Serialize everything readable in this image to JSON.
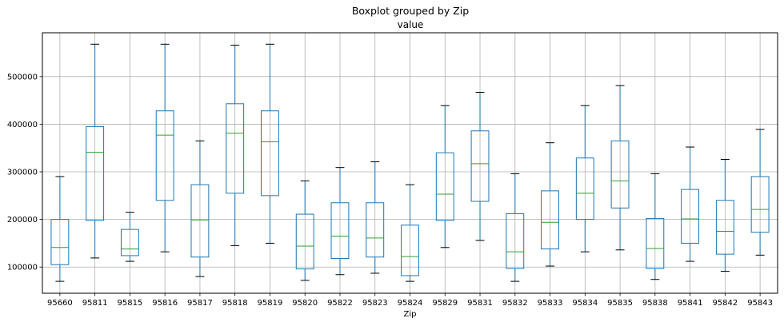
{
  "chart_data": {
    "type": "boxplot",
    "title": "Boxplot grouped by Zip",
    "subtitle": "value",
    "xlabel": "Zip",
    "ylabel": "",
    "ylim": [
      45000,
      592000
    ],
    "yticks": [
      100000,
      200000,
      300000,
      400000,
      500000
    ],
    "ytick_labels": [
      "100000",
      "200000",
      "300000",
      "400000",
      "500000"
    ],
    "grid": true,
    "colors": {
      "box": "#1f77b4",
      "median": "#2ca02c",
      "whisker_cap": "#000000",
      "grid": "#b0b0b0"
    },
    "categories": [
      "95660",
      "95811",
      "95815",
      "95816",
      "95817",
      "95818",
      "95819",
      "95820",
      "95822",
      "95823",
      "95824",
      "95829",
      "95831",
      "95832",
      "95833",
      "95834",
      "95835",
      "95838",
      "95841",
      "95842",
      "95843"
    ],
    "boxes": [
      {
        "whislo": 70000,
        "q1": 105000,
        "med": 141000,
        "q3": 200000,
        "whishi": 290000
      },
      {
        "whislo": 119000,
        "q1": 198000,
        "med": 341000,
        "q3": 395000,
        "whishi": 568000
      },
      {
        "whislo": 112000,
        "q1": 124000,
        "med": 138000,
        "q3": 179000,
        "whishi": 215000
      },
      {
        "whislo": 132000,
        "q1": 240000,
        "med": 377000,
        "q3": 428000,
        "whishi": 568000
      },
      {
        "whislo": 80000,
        "q1": 121000,
        "med": 199000,
        "q3": 273000,
        "whishi": 365000
      },
      {
        "whislo": 145000,
        "q1": 255000,
        "med": 381000,
        "q3": 443000,
        "whishi": 566000
      },
      {
        "whislo": 150000,
        "q1": 250000,
        "med": 363000,
        "q3": 428000,
        "whishi": 568000
      },
      {
        "whislo": 72000,
        "q1": 96000,
        "med": 144000,
        "q3": 211000,
        "whishi": 281000
      },
      {
        "whislo": 84000,
        "q1": 118000,
        "med": 165000,
        "q3": 235000,
        "whishi": 309000
      },
      {
        "whislo": 87000,
        "q1": 121000,
        "med": 161000,
        "q3": 235000,
        "whishi": 321000
      },
      {
        "whislo": 70000,
        "q1": 82000,
        "med": 122000,
        "q3": 188000,
        "whishi": 273000
      },
      {
        "whislo": 141000,
        "q1": 198000,
        "med": 253000,
        "q3": 340000,
        "whishi": 439000
      },
      {
        "whislo": 156000,
        "q1": 238000,
        "med": 317000,
        "q3": 386000,
        "whishi": 467000
      },
      {
        "whislo": 70000,
        "q1": 97000,
        "med": 132000,
        "q3": 212000,
        "whishi": 296000
      },
      {
        "whislo": 102000,
        "q1": 138000,
        "med": 194000,
        "q3": 260000,
        "whishi": 361000
      },
      {
        "whislo": 132000,
        "q1": 200000,
        "med": 255000,
        "q3": 329000,
        "whishi": 439000
      },
      {
        "whislo": 136000,
        "q1": 224000,
        "med": 281000,
        "q3": 365000,
        "whishi": 481000
      },
      {
        "whislo": 74000,
        "q1": 97000,
        "med": 139000,
        "q3": 202000,
        "whishi": 296000
      },
      {
        "whislo": 112000,
        "q1": 150000,
        "med": 201000,
        "q3": 263000,
        "whishi": 352000
      },
      {
        "whislo": 91000,
        "q1": 127000,
        "med": 175000,
        "q3": 240000,
        "whishi": 326000
      },
      {
        "whislo": 125000,
        "q1": 173000,
        "med": 221000,
        "q3": 290000,
        "whishi": 389000
      }
    ]
  }
}
